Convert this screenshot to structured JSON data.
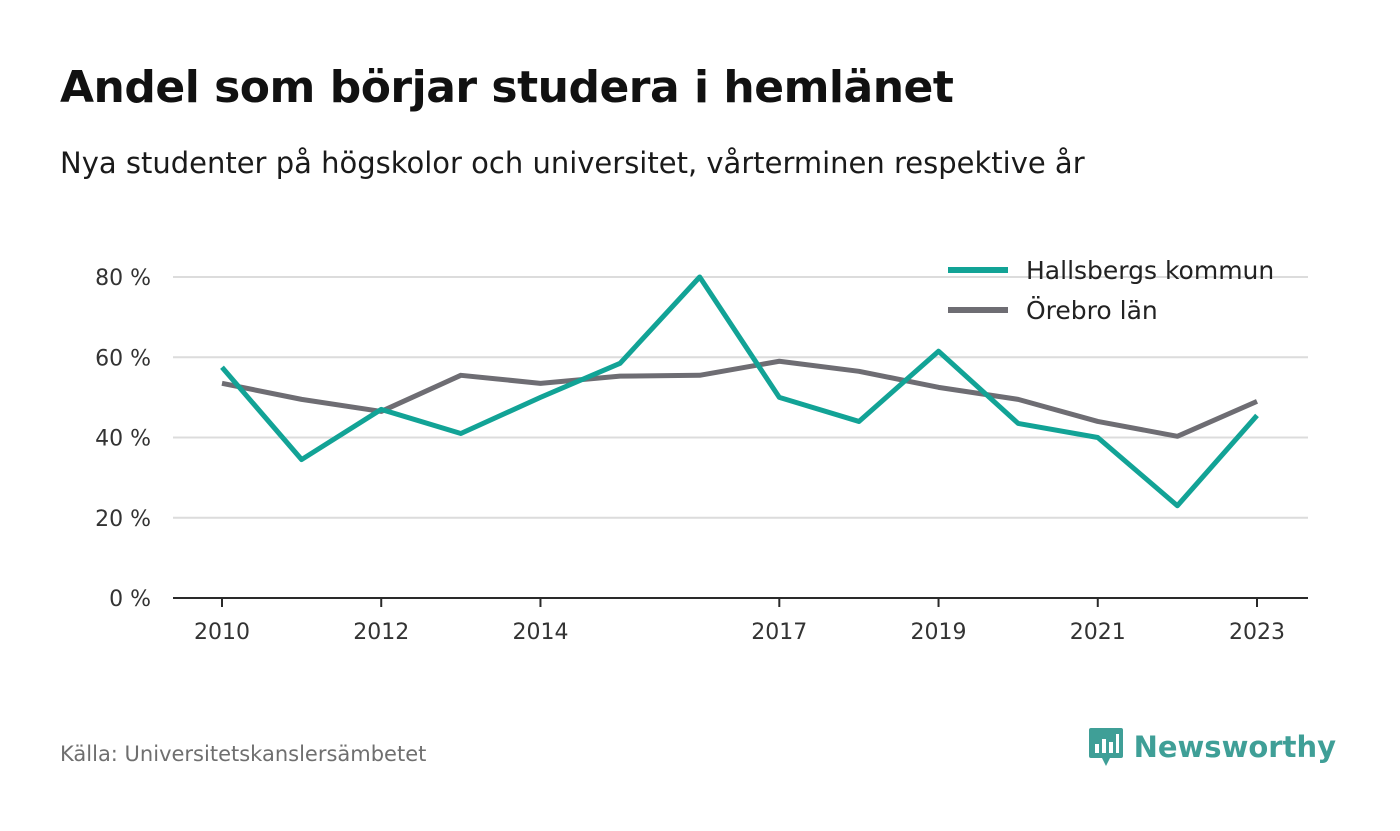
{
  "title": "Andel som börjar studera i hemlänet",
  "subtitle": "Nya studenter på högskolor och universitet, vårterminen respektive år",
  "source": "Källa: Universitetskanslersämbetet",
  "brand": {
    "name": "Newsworthy",
    "icon": "newsworthy-logo-icon",
    "color": "#3f9f97"
  },
  "chart_data": {
    "type": "line",
    "title": "",
    "xlabel": "",
    "ylabel": "",
    "x": [
      2010,
      2011,
      2012,
      2013,
      2014,
      2015,
      2016,
      2017,
      2018,
      2019,
      2020,
      2021,
      2022,
      2023
    ],
    "x_ticks": [
      2010,
      2012,
      2014,
      2017,
      2019,
      2021,
      2023
    ],
    "y_ticks": [
      0,
      20,
      40,
      60,
      80
    ],
    "y_tick_format": "{v} %",
    "ylim": [
      0,
      80
    ],
    "grid": true,
    "legend_position": "top-right",
    "series": [
      {
        "name": "Hallsbergs kommun",
        "color": "#12a396",
        "values": [
          57.5,
          34.5,
          47,
          41,
          50,
          58.5,
          80,
          50,
          44,
          61.5,
          43.5,
          40,
          23,
          45.5
        ]
      },
      {
        "name": "Örebro län",
        "color": "#6e6d73",
        "values": [
          53.5,
          49.5,
          46.5,
          55.5,
          53.5,
          55.3,
          55.5,
          59,
          56.5,
          52.5,
          49.5,
          44,
          40.3,
          49
        ]
      }
    ]
  }
}
